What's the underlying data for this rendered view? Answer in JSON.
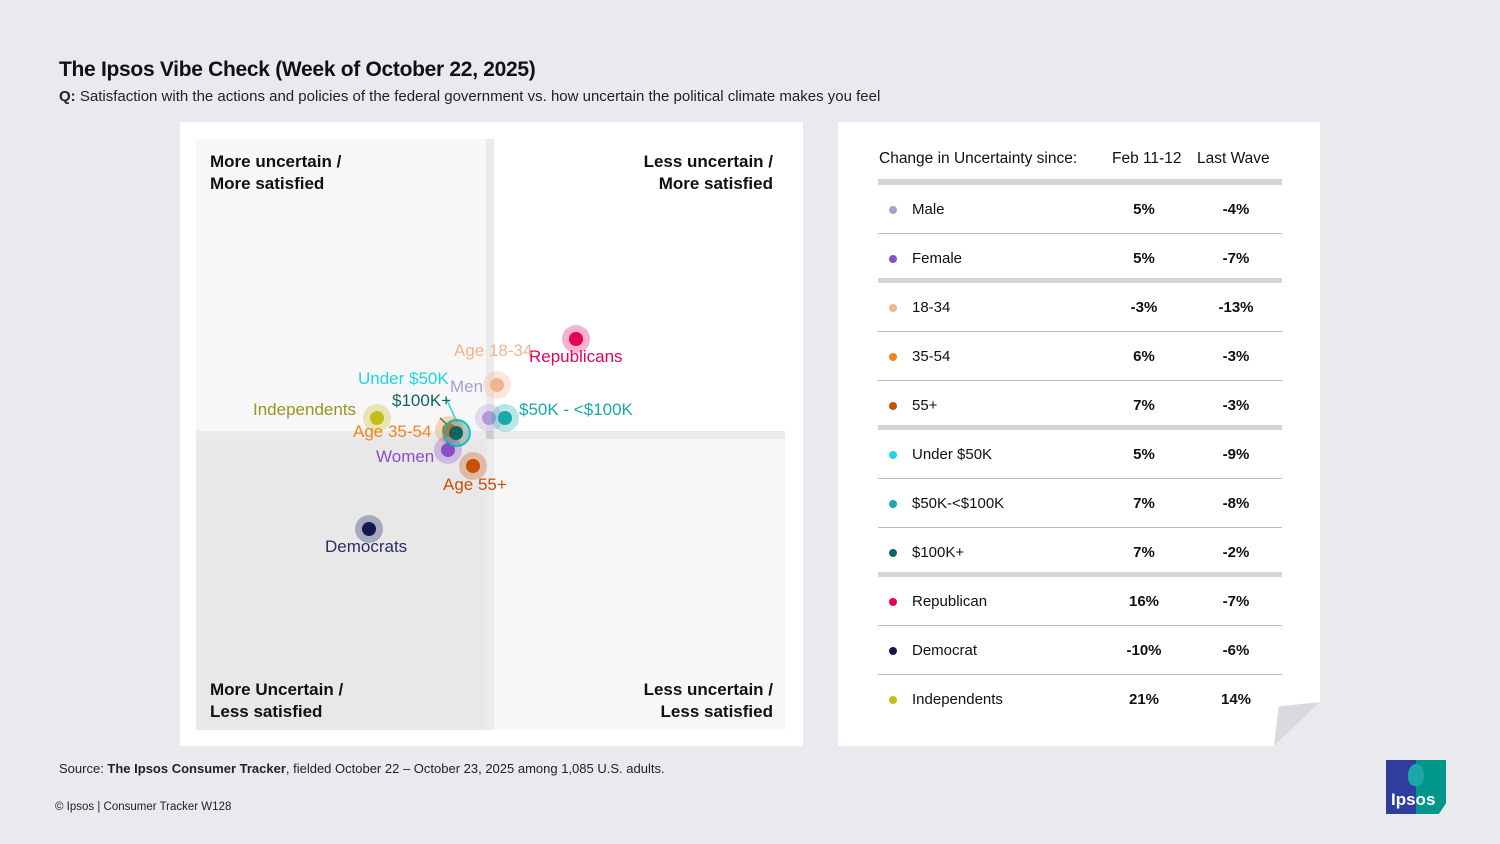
{
  "header": {
    "title": "The Ipsos Vibe Check (Week of October 22, 2025)",
    "q_prefix": "Q:",
    "question": "Satisfaction with the actions and policies of the federal government vs. how uncertain the political climate makes you feel"
  },
  "chart_data": {
    "type": "scatter",
    "quadrants": {
      "top_left": [
        "More uncertain /",
        "More satisfied"
      ],
      "top_right": [
        "Less uncertain /",
        "More satisfied"
      ],
      "bottom_left": [
        "More Uncertain /",
        "Less satisfied"
      ],
      "bottom_right": [
        "Less uncertain /",
        "Less satisfied"
      ]
    },
    "points": [
      {
        "name": "Republicans",
        "color": "#e6005a"
      },
      {
        "name": "Age 18-34",
        "color": "#f2b48f"
      },
      {
        "name": "Men",
        "color": "#b19ad6"
      },
      {
        "name": "$50K - <$100K",
        "color": "#1aa8a8"
      },
      {
        "name": "Independents",
        "color": "#c4bd1c"
      },
      {
        "name": "Age 35-54",
        "color": "#f5821f"
      },
      {
        "name": "Women",
        "color": "#8a4fc8"
      },
      {
        "name": "Age 55+",
        "color": "#c8500a"
      },
      {
        "name": "Under $50K",
        "color": "#22d3e0"
      },
      {
        "name": "$100K+",
        "color": "#0f6660"
      },
      {
        "name": "Democrats",
        "color": "#141852"
      }
    ]
  },
  "table": {
    "headers": [
      "Change in Uncertainty since:",
      "Feb 11-12",
      "Last Wave"
    ],
    "rows": [
      {
        "name": "Male",
        "feb": "5%",
        "last": "-4%",
        "color": "#b19ad6"
      },
      {
        "name": "Female",
        "feb": "5%",
        "last": "-7%",
        "color": "#8a4fc8"
      },
      {
        "name": "18-34",
        "feb": "-3%",
        "last": "-13%",
        "color": "#f2b48f"
      },
      {
        "name": "35-54",
        "feb": "6%",
        "last": "-3%",
        "color": "#f5821f"
      },
      {
        "name": "55+",
        "feb": "7%",
        "last": "-3%",
        "color": "#c8500a"
      },
      {
        "name": "Under $50K",
        "feb": "5%",
        "last": "-9%",
        "color": "#22d3e0"
      },
      {
        "name": "$50K-<$100K",
        "feb": "7%",
        "last": "-8%",
        "color": "#1aa8a8"
      },
      {
        "name": "$100K+",
        "feb": "7%",
        "last": "-2%",
        "color": "#0f6660"
      },
      {
        "name": "Republican",
        "feb": "16%",
        "last": "-7%",
        "color": "#e6005a"
      },
      {
        "name": "Democrat",
        "feb": "-10%",
        "last": "-6%",
        "color": "#141852"
      },
      {
        "name": "Independents",
        "feb": "21%",
        "last": "14%",
        "color": "#c4bd1c"
      }
    ]
  },
  "footer": {
    "source_prefix": "Source: ",
    "source_bold": "The Ipsos Consumer Tracker",
    "source_rest": ", fielded October 22 – October 23, 2025 among 1,085 U.S. adults.",
    "copyright": "© Ipsos | Consumer Tracker W128",
    "logo": "Ipsos"
  }
}
